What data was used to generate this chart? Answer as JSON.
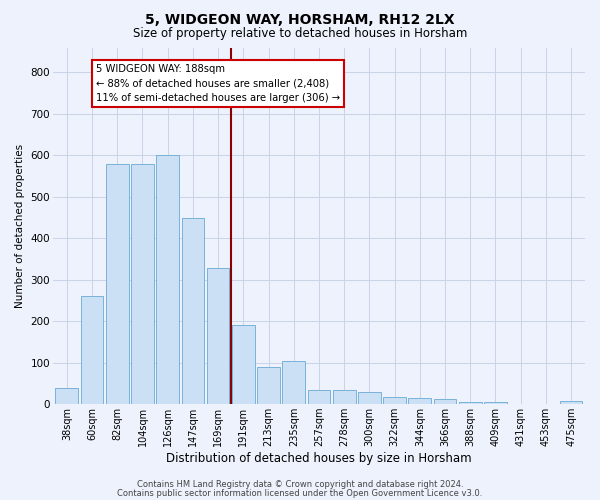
{
  "title1": "5, WIDGEON WAY, HORSHAM, RH12 2LX",
  "title2": "Size of property relative to detached houses in Horsham",
  "xlabel": "Distribution of detached houses by size in Horsham",
  "ylabel": "Number of detached properties",
  "categories": [
    "38sqm",
    "60sqm",
    "82sqm",
    "104sqm",
    "126sqm",
    "147sqm",
    "169sqm",
    "191sqm",
    "213sqm",
    "235sqm",
    "257sqm",
    "278sqm",
    "300sqm",
    "322sqm",
    "344sqm",
    "366sqm",
    "388sqm",
    "409sqm",
    "431sqm",
    "453sqm",
    "475sqm"
  ],
  "values": [
    38,
    262,
    580,
    580,
    600,
    450,
    328,
    192,
    90,
    103,
    35,
    35,
    30,
    17,
    15,
    12,
    5,
    5,
    0,
    0,
    7
  ],
  "bar_color": "#cce0f5",
  "bar_edge_color": "#6aaad4",
  "grid_color": "#c8d4e8",
  "vline_x_idx": 7,
  "vline_color": "#8b0000",
  "annotation_text": "5 WIDGEON WAY: 188sqm\n← 88% of detached houses are smaller (2,408)\n11% of semi-detached houses are larger (306) →",
  "annotation_box_color": "#ffffff",
  "annotation_box_edge": "#cc0000",
  "ylim": [
    0,
    860
  ],
  "yticks": [
    0,
    100,
    200,
    300,
    400,
    500,
    600,
    700,
    800
  ],
  "footer1": "Contains HM Land Registry data © Crown copyright and database right 2024.",
  "footer2": "Contains public sector information licensed under the Open Government Licence v3.0.",
  "bg_color": "#edf2fc",
  "title1_fontsize": 10,
  "title2_fontsize": 8.5,
  "ylabel_fontsize": 7.5,
  "xlabel_fontsize": 8.5,
  "tick_fontsize": 7,
  "footer_fontsize": 6
}
